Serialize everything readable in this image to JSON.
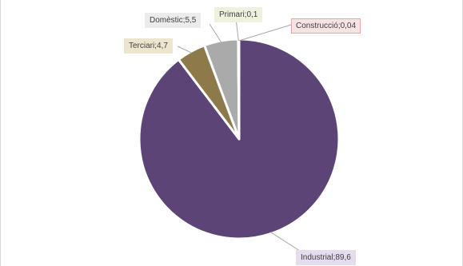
{
  "chart_data": {
    "type": "pie",
    "separator": ";",
    "slices": [
      {
        "name": "Industrial",
        "display_value": "89,6",
        "value": 89.6,
        "color": "#5c4576",
        "label_bg": "#e5dced",
        "label_border": "#e5dced"
      },
      {
        "name": "Terciari",
        "display_value": "4,7",
        "value": 4.7,
        "color": "#8c7a4a",
        "label_bg": "#ede6cf",
        "label_border": "#ede6cf"
      },
      {
        "name": "Domèstic",
        "display_value": "5,5",
        "value": 5.5,
        "color": "#aaaaaa",
        "label_bg": "#ececec",
        "label_border": "#ececec"
      },
      {
        "name": "Primari",
        "display_value": "0,1",
        "value": 0.1,
        "color": "#8aa05a",
        "label_bg": "#edf2df",
        "label_border": "#edf2df"
      },
      {
        "name": "Construcció",
        "display_value": "0,04",
        "value": 0.04,
        "color": "#c0504d",
        "label_bg": "#f6e4e4",
        "label_border": "#e3a9a8"
      }
    ]
  }
}
